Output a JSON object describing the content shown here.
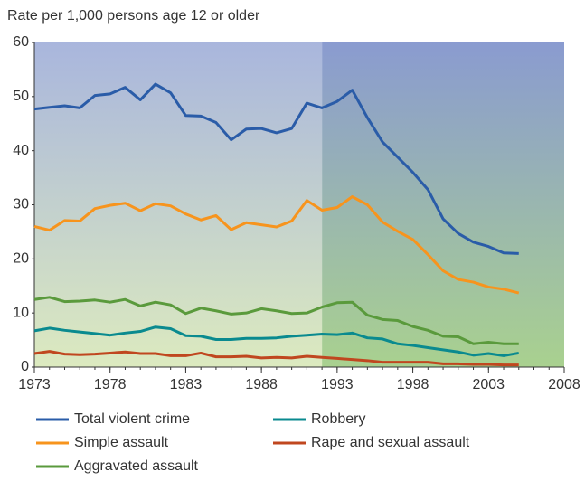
{
  "chart_data": {
    "type": "line",
    "y_axis_label": "Rate per 1,000 persons age 12 or older",
    "x": [
      1973,
      1974,
      1975,
      1976,
      1977,
      1978,
      1979,
      1980,
      1981,
      1982,
      1983,
      1984,
      1985,
      1986,
      1987,
      1988,
      1989,
      1990,
      1991,
      1992,
      1993,
      1994,
      1995,
      1996,
      1997,
      1998,
      1999,
      2000,
      2001,
      2002,
      2003,
      2004,
      2005
    ],
    "series": [
      {
        "name": "Total violent crime",
        "color": "#2a5ca8",
        "values": [
          47.7,
          48.0,
          48.3,
          47.9,
          50.2,
          50.5,
          51.7,
          49.4,
          52.3,
          50.7,
          46.5,
          46.4,
          45.2,
          42.0,
          44.0,
          44.1,
          43.3,
          44.1,
          48.8,
          47.9,
          49.1,
          51.2,
          46.1,
          41.6,
          38.8,
          36.0,
          32.8,
          27.4,
          24.7,
          23.1,
          22.3,
          21.1,
          21.0
        ]
      },
      {
        "name": "Simple assault",
        "color": "#f7941d",
        "values": [
          26.0,
          25.3,
          27.1,
          27.0,
          29.3,
          29.9,
          30.3,
          28.9,
          30.2,
          29.8,
          28.3,
          27.2,
          28.0,
          25.4,
          26.7,
          26.3,
          25.9,
          27.0,
          30.8,
          29.0,
          29.5,
          31.5,
          30.0,
          26.8,
          25.1,
          23.6,
          20.8,
          17.8,
          16.2,
          15.7,
          14.8,
          14.4,
          13.7
        ]
      },
      {
        "name": "Aggravated assault",
        "color": "#5a9a3c",
        "values": [
          12.5,
          12.9,
          12.1,
          12.2,
          12.4,
          12.0,
          12.5,
          11.3,
          12.0,
          11.5,
          9.9,
          10.9,
          10.4,
          9.8,
          10.0,
          10.8,
          10.4,
          9.9,
          10.0,
          11.1,
          11.9,
          12.0,
          9.6,
          8.8,
          8.6,
          7.5,
          6.8,
          5.7,
          5.6,
          4.3,
          4.6,
          4.3,
          4.3
        ]
      },
      {
        "name": "Robbery",
        "color": "#0a8a8f",
        "values": [
          6.7,
          7.2,
          6.8,
          6.5,
          6.2,
          5.9,
          6.3,
          6.6,
          7.4,
          7.1,
          5.8,
          5.7,
          5.1,
          5.1,
          5.3,
          5.3,
          5.4,
          5.7,
          5.9,
          6.1,
          6.0,
          6.3,
          5.4,
          5.2,
          4.3,
          4.0,
          3.6,
          3.2,
          2.8,
          2.2,
          2.5,
          2.1,
          2.6
        ]
      },
      {
        "name": "Rape and sexual assault",
        "color": "#c0471f",
        "values": [
          2.5,
          2.9,
          2.4,
          2.3,
          2.4,
          2.6,
          2.8,
          2.5,
          2.5,
          2.1,
          2.1,
          2.6,
          1.9,
          1.9,
          2.0,
          1.7,
          1.8,
          1.7,
          2.0,
          1.8,
          1.6,
          1.4,
          1.2,
          0.9,
          0.9,
          0.9,
          0.9,
          0.6,
          0.6,
          0.5,
          0.5,
          0.4,
          0.4
        ]
      }
    ],
    "xlim": [
      1973,
      2008
    ],
    "xticks": [
      1973,
      1978,
      1983,
      1988,
      1993,
      1998,
      2003,
      2008
    ],
    "ylim": [
      0,
      60
    ],
    "yticks": [
      0,
      10,
      20,
      30,
      40,
      50,
      60
    ],
    "highlight_from": 1992
  }
}
